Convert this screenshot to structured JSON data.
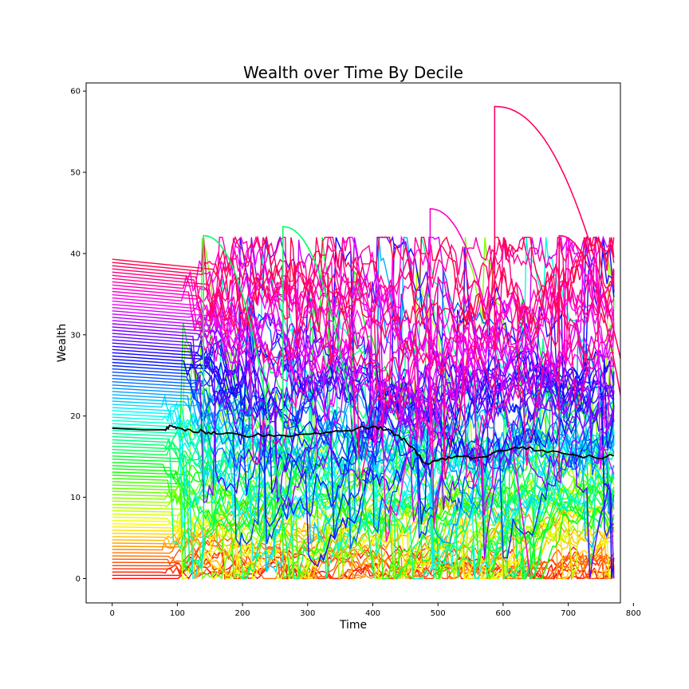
{
  "chart_data": {
    "type": "line",
    "title": "Wealth over Time By Decile",
    "xlabel": "Time",
    "ylabel": "Wealth",
    "xlim": [
      -40,
      780
    ],
    "ylim": [
      -3,
      61
    ],
    "xticks": [
      0,
      100,
      200,
      300,
      400,
      500,
      600,
      700,
      800
    ],
    "yticks": [
      0,
      10,
      20,
      30,
      40,
      50,
      60
    ],
    "grid": false,
    "legend": "none",
    "series_count": 100,
    "series_colormap": "hsv, index 0 = red (lowest initial wealth) to index 99 = magenta-red (highest initial wealth)",
    "initial_wealth": {
      "min": 0,
      "max": 39.3
    },
    "time_range": [
      0,
      770
    ],
    "mean_series": {
      "color": "#000000",
      "x": [
        0,
        50,
        80,
        90,
        100,
        120,
        140,
        160,
        200,
        240,
        280,
        320,
        360,
        400,
        420,
        440,
        460,
        480,
        500,
        520,
        560,
        600,
        630,
        660,
        700,
        740,
        770
      ],
      "y": [
        18.5,
        18.3,
        18.3,
        18.8,
        18.6,
        18.3,
        18.1,
        17.8,
        17.6,
        17.7,
        17.6,
        17.8,
        18.2,
        18.7,
        18.3,
        17.6,
        16.2,
        14.2,
        14.5,
        14.8,
        14.9,
        15.7,
        16.2,
        15.8,
        15.3,
        14.9,
        15.1
      ]
    },
    "notable_spikes": [
      {
        "x": 140,
        "y": 42.2,
        "color": "#00ff66"
      },
      {
        "x": 262,
        "y": 43.3,
        "color": "#00ff66"
      },
      {
        "x": 488,
        "y": 45.5,
        "color": "#ff00cc"
      },
      {
        "x": 587,
        "y": 58.1,
        "color": "#ff0066"
      },
      {
        "x": 686,
        "y": 42.2,
        "color": "#ff0066"
      }
    ]
  }
}
